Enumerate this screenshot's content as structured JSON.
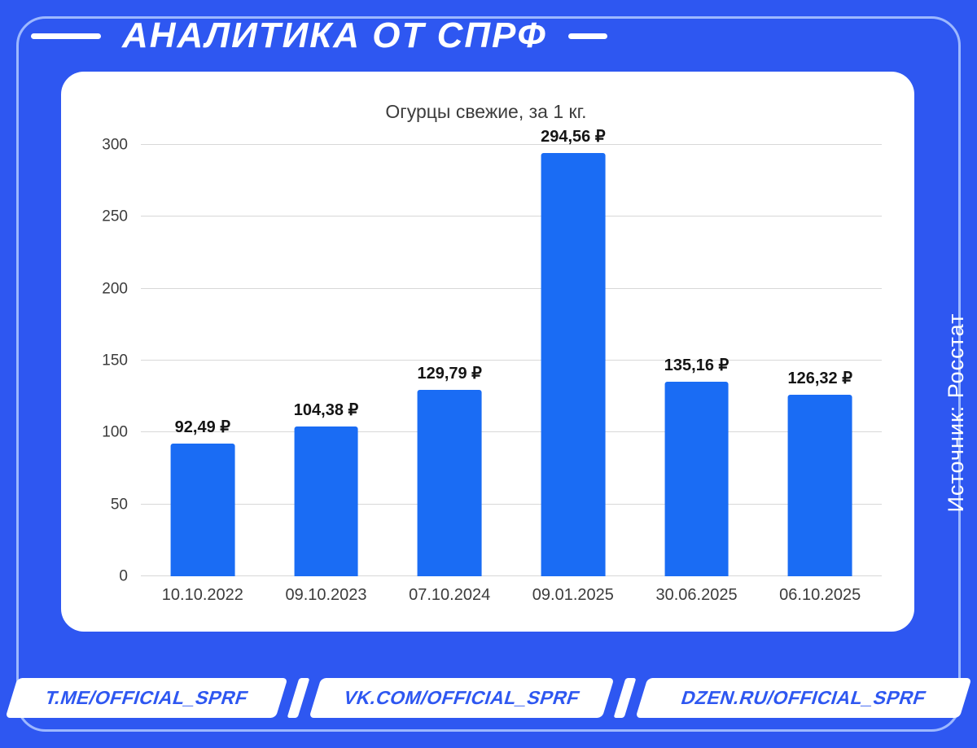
{
  "colors": {
    "background": "#2e57f1",
    "bar": "#1a6cf4",
    "frame_border": "#9db8ff",
    "card": "#ffffff",
    "footer_text": "#2e57f1"
  },
  "header": {
    "title": "АНАЛИТИКА ОТ СПРФ"
  },
  "source_label": "Источник: Росстат",
  "footer": {
    "links": [
      {
        "label": "T.ME/OFFICIAL_SPRF"
      },
      {
        "label": "VK.COM/OFFICIAL_SPRF"
      },
      {
        "label": "DZEN.RU/OFFICIAL_SPRF"
      }
    ]
  },
  "chart_data": {
    "type": "bar",
    "title": "Огурцы свежие, за 1 кг.",
    "categories": [
      "10.10.2022",
      "09.10.2023",
      "07.10.2024",
      "09.01.2025",
      "30.06.2025",
      "06.10.2025"
    ],
    "values": [
      92.49,
      104.38,
      129.79,
      294.56,
      135.16,
      126.32
    ],
    "labels": [
      "92,49 ₽",
      "104,38 ₽",
      "129,79 ₽",
      "294,56 ₽",
      "135,16 ₽",
      "126,32 ₽"
    ],
    "unit": "₽",
    "ylim": [
      0,
      300
    ],
    "yticks": [
      0,
      50,
      100,
      150,
      200,
      250,
      300
    ],
    "grid": true,
    "legend": "none",
    "bar_color": "#1a6cf4",
    "xlabel": "",
    "ylabel": ""
  }
}
